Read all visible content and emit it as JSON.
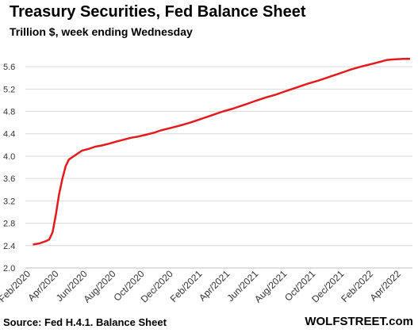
{
  "title": "Treasury Securities, Fed Balance Sheet",
  "subtitle": "Trillion $, week ending Wednesday",
  "source": "Source: Fed H.4.1. Balance Sheet",
  "brand": "WOLFSTREET.com",
  "colors": {
    "line": "#e31a1c",
    "grid": "#d9d9d9",
    "axis": "#bfbfbf"
  },
  "chart_data": {
    "type": "line",
    "title": "Treasury Securities, Fed Balance Sheet",
    "subtitle": "Trillion $, week ending Wednesday",
    "ylim": [
      2.0,
      5.8
    ],
    "yticks": [
      "2.0",
      "2.4",
      "2.8",
      "3.2",
      "3.6",
      "4.0",
      "4.4",
      "4.8",
      "5.2",
      "5.6"
    ],
    "xticks": [
      "Feb/2020",
      "Apr/2020",
      "Jun/2020",
      "Aug/2020",
      "Oct/2020",
      "Dec/2020",
      "Feb/2021",
      "Apr/2021",
      "Jun/2021",
      "Aug/2021",
      "Oct/2021",
      "Dec/2021",
      "Feb/2022",
      "Apr/2022"
    ],
    "grid": true,
    "legend": "none",
    "series": [
      {
        "x": [
          "2020-02-05",
          "2020-02-19",
          "2020-03-04",
          "2020-03-11",
          "2020-03-18",
          "2020-03-25",
          "2020-04-01",
          "2020-04-08",
          "2020-04-15",
          "2020-04-22",
          "2020-05-06",
          "2020-05-20",
          "2020-06-03",
          "2020-06-17",
          "2020-07-01",
          "2020-07-15",
          "2020-08-05",
          "2020-08-19",
          "2020-09-02",
          "2020-09-16",
          "2020-10-07",
          "2020-10-21",
          "2020-11-04",
          "2020-11-18",
          "2020-12-02",
          "2020-12-16",
          "2021-01-06",
          "2021-01-20",
          "2021-02-03",
          "2021-02-17",
          "2021-03-03",
          "2021-03-17",
          "2021-04-07",
          "2021-04-21",
          "2021-05-05",
          "2021-05-19",
          "2021-06-02",
          "2021-06-16",
          "2021-07-07",
          "2021-07-21",
          "2021-08-04",
          "2021-08-18",
          "2021-09-01",
          "2021-09-15",
          "2021-10-06",
          "2021-10-20",
          "2021-11-03",
          "2021-11-17",
          "2021-12-01",
          "2021-12-15",
          "2022-01-05",
          "2022-01-19",
          "2022-02-02",
          "2022-02-16",
          "2022-03-02",
          "2022-03-16",
          "2022-04-06",
          "2022-04-20"
        ],
        "y": [
          2.42,
          2.44,
          2.48,
          2.51,
          2.64,
          2.95,
          3.32,
          3.6,
          3.82,
          3.94,
          4.02,
          4.1,
          4.13,
          4.17,
          4.19,
          4.22,
          4.27,
          4.3,
          4.33,
          4.35,
          4.39,
          4.42,
          4.46,
          4.49,
          4.52,
          4.55,
          4.6,
          4.64,
          4.68,
          4.72,
          4.76,
          4.8,
          4.85,
          4.89,
          4.93,
          4.97,
          5.01,
          5.05,
          5.1,
          5.14,
          5.18,
          5.22,
          5.26,
          5.3,
          5.35,
          5.39,
          5.43,
          5.47,
          5.51,
          5.55,
          5.6,
          5.63,
          5.66,
          5.69,
          5.72,
          5.73,
          5.74,
          5.74
        ]
      }
    ]
  }
}
